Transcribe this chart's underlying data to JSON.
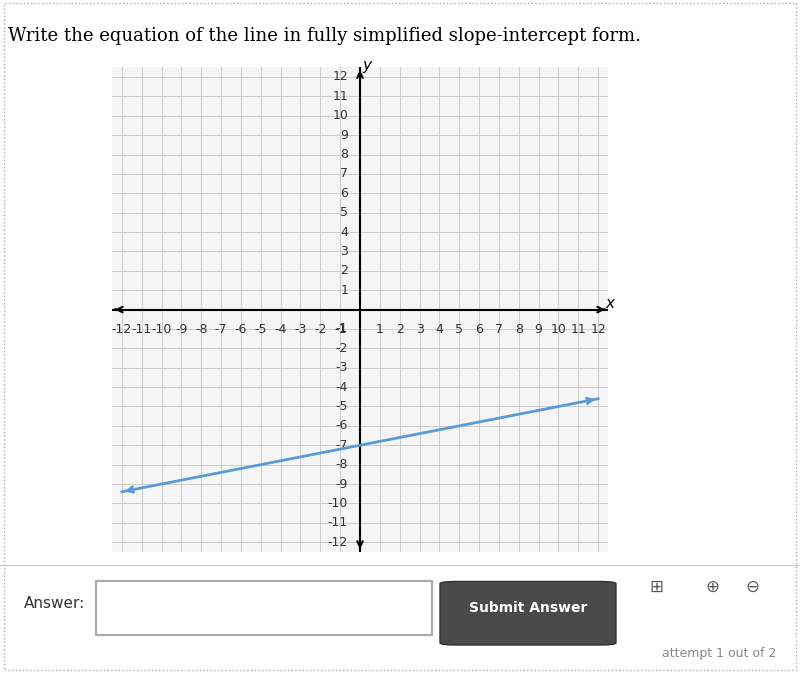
{
  "title": "Write the equation of the line in fully simplified slope-intercept form.",
  "title_fontsize": 13,
  "title_color": "#000000",
  "xmin": -12,
  "xmax": 12,
  "ymin": -12,
  "ymax": 12,
  "grid_color": "#cccccc",
  "axis_color": "#000000",
  "background_color": "#ffffff",
  "plot_bg_color": "#f5f5f5",
  "line_slope": 0.2,
  "line_intercept": -7,
  "line_color": "#5b9bd5",
  "line_width": 2.0,
  "line_x_start": -12,
  "line_x_end": 12,
  "answer_label": "Answer:",
  "submit_label": "Submit Answer",
  "tick_fontsize": 9,
  "axis_label_fontsize": 11,
  "footer_text": "attempt 1 out of 2"
}
